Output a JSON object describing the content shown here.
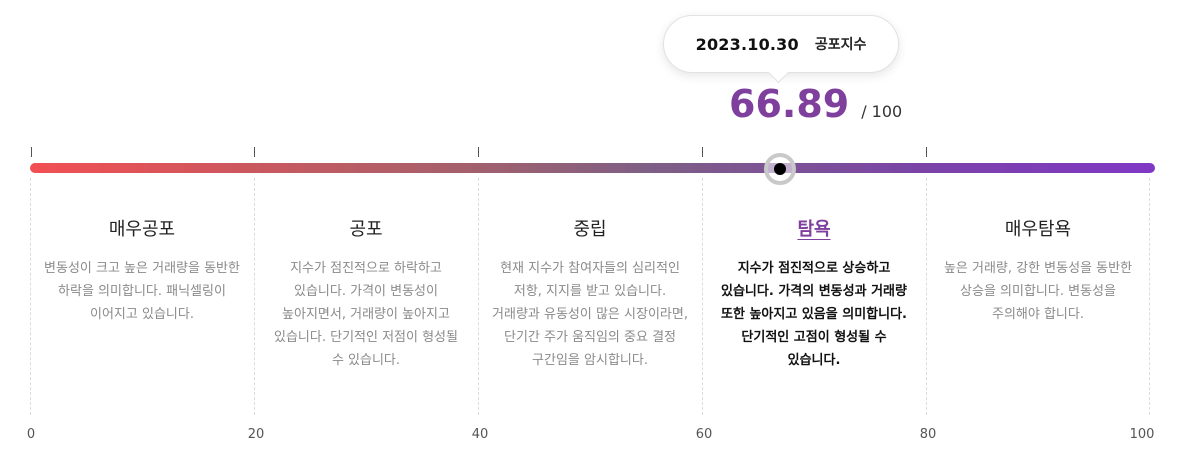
{
  "tooltip": {
    "date": "2023.10.30",
    "label": "공포지수"
  },
  "score": {
    "value": "66.89",
    "max": "/ 100"
  },
  "gauge": {
    "value": 66.89,
    "min": 0,
    "max": 100,
    "active_zone": "탐욕"
  },
  "zones": [
    {
      "title": "매우공포",
      "description": "변동성이 크고 높은 거래량을 동반한 하락을 의미합니다. 패닉셀링이 이어지고 있습니다."
    },
    {
      "title": "공포",
      "description": "지수가 점진적으로 하락하고 있습니다. 가격이 변동성이 높아지면서, 거래량이 높아지고 있습니다. 단기적인 저점이 형성될 수 있습니다."
    },
    {
      "title": "중립",
      "description": "현재 지수가 참여자들의 심리적인 저항, 지지를 받고 있습니다. 거래량과 유동성이 많은 시장이라면, 단기간 주가 움직임의 중요 결정 구간임을 암시합니다."
    },
    {
      "title": "탐욕",
      "description": "지수가 점진적으로 상승하고 있습니다. 가격의 변동성과 거래량 또한 높아지고 있음을 의미합니다. 단기적인 고점이 형성될 수 있습니다."
    },
    {
      "title": "매우탐욕",
      "description": "높은 거래량, 강한 변동성을 동반한 상승을 의미합니다. 변동성을 주의해야 합니다."
    }
  ],
  "axis": [
    "0",
    "20",
    "40",
    "60",
    "80",
    "100"
  ],
  "colors": {
    "accent": "#7e3f9d",
    "bar_start": "#f24f52",
    "bar_end": "#8038c5"
  }
}
